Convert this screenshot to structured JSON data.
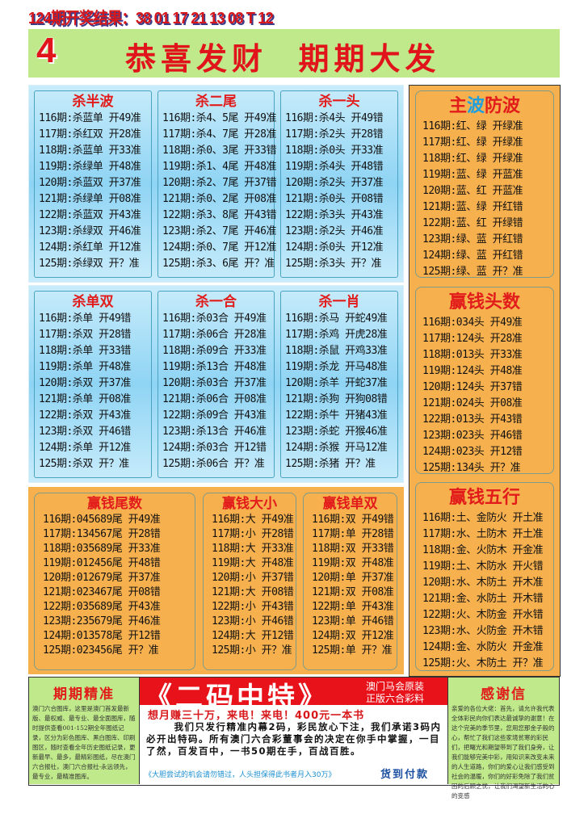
{
  "header": {
    "result": "124期开奖结果：38 01 17 21 13 08 T 12",
    "banner_num": "4",
    "banner_text": "恭喜发财  期期大发"
  },
  "blue_top": [
    {
      "title": "杀半波",
      "rows": [
        "116期:杀蓝单 开49准",
        "117期:杀红双 开28准",
        "118期:杀蓝单 开33准",
        "119期:杀绿单 开48准",
        "120期:杀蓝双 开37准",
        "121期:杀绿单 开08准",
        "122期:杀蓝双 开43准",
        "123期:杀绿双 开46准",
        "124期:杀红单 开12准",
        "125期:杀绿双 开？准"
      ]
    },
    {
      "title": "杀二尾",
      "rows": [
        "116期:杀4、5尾 开49准",
        "117期:杀4、7尾 开28准",
        "118期:杀0、3尾 开33错",
        "119期:杀1、4尾 开48准",
        "120期:杀2、7尾 开37错",
        "121期:杀0、2尾 开08准",
        "122期:杀3、8尾 开43错",
        "123期:杀2、7尾 开46准",
        "124期:杀0、7尾 开12准",
        "125期:杀3、6尾 开？准"
      ]
    },
    {
      "title": "杀一头",
      "rows": [
        "116期:杀4头 开49错",
        "117期:杀2头 开28错",
        "118期:杀0头 开33准",
        "119期:杀4头 开48错",
        "120期:杀2头 开37准",
        "121期:杀0头 开08错",
        "122期:杀3头 开43准",
        "123期:杀2头 开46准",
        "124期:杀0头 开12准",
        "125期:杀3头 开？准"
      ]
    }
  ],
  "blue_mid": [
    {
      "title": "杀单双",
      "rows": [
        "116期:杀单 开49错",
        "117期:杀双 开28错",
        "118期:杀单 开33错",
        "119期:杀单 开48准",
        "120期:杀双 开37准",
        "121期:杀单 开08准",
        "122期:杀双 开43准",
        "123期:杀双 开46错",
        "124期:杀单 开12准",
        "125期:杀双 开？准"
      ]
    },
    {
      "title": "杀一合",
      "rows": [
        "116期:杀03合 开49准",
        "117期:杀06合 开28准",
        "118期:杀09合 开33准",
        "119期:杀13合 开48准",
        "120期:杀03合 开37准",
        "121期:杀06合 开08准",
        "122期:杀09合 开43准",
        "123期:杀13合 开46准",
        "124期:杀03合 开12错",
        "125期:杀06合 开？准"
      ]
    },
    {
      "title": "杀一肖",
      "rows": [
        "116期:杀马 开蛇49准",
        "117期:杀鸡 开虎28准",
        "118期:杀鼠 开鸡33准",
        "119期:杀龙 开马48准",
        "120期:杀羊 开蛇37准",
        "121期:杀狗 开狗08错",
        "122期:杀牛 开猪43准",
        "123期:杀蛇 开猴46准",
        "124期:杀猴 开马12准",
        "125期:杀猪 开？准"
      ]
    }
  ],
  "orange_bottom": [
    {
      "title": "赢钱尾数",
      "rows": [
        "116期:045689尾 开49准",
        "117期:134567尾 开28错",
        "118期:035689尾 开33准",
        "119期:012456尾 开48错",
        "120期:012679尾 开37准",
        "121期:023467尾 开08错",
        "122期:035689尾 开43准",
        "123期:235679尾 开46准",
        "124期:013578尾 开12错",
        "125期:023456尾 开？准"
      ]
    },
    {
      "title": "赢钱大小",
      "rows": [
        "116期:大 开49准",
        "117期:小 开28错",
        "118期:大 开33准",
        "119期:大 开48准",
        "120期:小 开37错",
        "121期:大 开08错",
        "122期:小 开43错",
        "123期:小 开46错",
        "124期:大 开12错",
        "125期:小 开？准"
      ]
    },
    {
      "title": "赢钱单双",
      "rows": [
        "116期:双 开49错",
        "117期:单 开28错",
        "118期:双 开33错",
        "119期:双 开48准",
        "120期:单 开37准",
        "121期:双 开08准",
        "122期:单 开43准",
        "123期:单 开46错",
        "124期:双 开12准",
        "125期:单 开？准"
      ]
    }
  ],
  "right": [
    {
      "title": [
        "主",
        "波",
        "防波"
      ],
      "title_colors": [
        "#e21b1b",
        "#1ea0e0",
        "#e21b1b"
      ],
      "rows": [
        "116期:红、绿 开绿准",
        "117期:红、绿 开绿准",
        "118期:红、绿 开绿准",
        "119期:蓝、绿 开蓝准",
        "120期:蓝、红 开蓝准",
        "121期:蓝、绿 开红错",
        "122期:蓝、红 开绿错",
        "123期:绿、蓝 开红错",
        "124期:绿、蓝 开红错",
        "125期:绿、蓝 开？准"
      ]
    },
    {
      "title": [
        "赢钱头数"
      ],
      "title_colors": [
        "#e21b1b"
      ],
      "rows": [
        "116期:034头 开49准",
        "117期:124头 开28准",
        "118期:013头 开33准",
        "119期:124头 开48准",
        "120期:124头 开37错",
        "121期:024头 开08准",
        "122期:013头 开43错",
        "123期:023头 开46错",
        "124期:023头 开12错",
        "125期:134头 开？准"
      ]
    },
    {
      "title": [
        "赢钱五行"
      ],
      "title_colors": [
        "#e21b1b"
      ],
      "rows": [
        "116期:土、金防火 开土准",
        "117期:水、土防木 开土准",
        "118期:金、火防木 开金准",
        "119期:土、木防水 开火错",
        "120期:水、木防土 开木准",
        "121期:金、水防土 开木错",
        "122期:火、木防金 开水错",
        "123期:水、火防金 开木错",
        "124期:金、水防火 开金准",
        "125期:火、木防土 开？准"
      ]
    }
  ],
  "bottom": {
    "left_title": "期期精准",
    "left_text": "澳门六合图库，这里是澳门首发最新版、最权威、最专业、最全面图库，随时提供查看001-152期全年图纸记录，区分为彩色图库、黑白图库、印刷图区，随时查看全年历史图纸记录，更新最早、最多，最精彩图纸，尽在澳门六合报社，澳门六合报社-永远领先，最专业，最精准图库。",
    "mid_title": "《二码中特》",
    "mid_side1": "澳门马会原装",
    "mid_side2": "正版六合彩料",
    "mid_red": "想月赚三十万，来电！来电！400元一本书",
    "mid_body": "我们只发行精准内幕2码，彩民放心下注，我们承诺3码内必开出特码。所有澳门六合彩董事会的决定在你手中掌握，一目了然，百发百中，一书50期在手，百战百胜。",
    "mid_foot": "《大胆尝试的机会请勿错过，人头担保得此书者月入30万》",
    "mid_cod": "货到付款",
    "right_title": "感谢信",
    "right_text": "亲爱的各位大佬：首先，请允许我代表全体彩民向你们表达最诚挚的谢意！在这个完美的季节里，您用您那金子般的心，帮忙了我们这些家境贫寒的彩民们，把曙光和期望带到了我们身旁，让我们能够完美中彩，用知识来改变未来的人生道路，你们的爱心让我们感受到社会的温暖，你们的好彩免除了我们贫困的后顾之忧，让我们渴望新生活的心的变感"
  }
}
